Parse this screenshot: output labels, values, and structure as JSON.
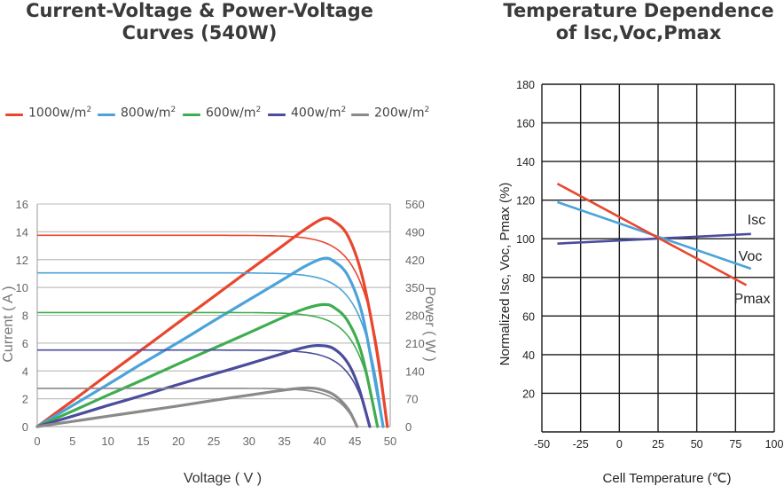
{
  "left_title": [
    "Current-Voltage & Power-Voltage",
    "Curves (540W)"
  ],
  "right_title": [
    "Temperature Dependence",
    "of Isc,Voc,Pmax"
  ],
  "legend": [
    {
      "label": "1000w/m",
      "sup": "2",
      "color": "#e8472e"
    },
    {
      "label": "800w/m",
      "sup": "2",
      "color": "#4ba3d9"
    },
    {
      "label": "600w/m",
      "sup": "2",
      "color": "#3fad4f"
    },
    {
      "label": "400w/m",
      "sup": "2",
      "color": "#4a4c9c"
    },
    {
      "label": "200w/m",
      "sup": "2",
      "color": "#8a8a8a"
    }
  ],
  "chart_data": [
    {
      "type": "line",
      "title": "Current-Voltage & Power-Voltage Curves (540W)",
      "xlabel": "Voltage ( V )",
      "ylabel": "Current ( A )",
      "y2label": "Power ( W )",
      "xlim": [
        0,
        50
      ],
      "ylim": [
        0,
        16
      ],
      "y2lim": [
        0,
        560
      ],
      "xticks": [
        0,
        5,
        10,
        15,
        20,
        25,
        30,
        35,
        40,
        45,
        50
      ],
      "yticks": [
        0,
        2,
        4,
        6,
        8,
        10,
        12,
        14,
        16
      ],
      "y2ticks": [
        0,
        70,
        140,
        210,
        280,
        350,
        420,
        490,
        560
      ],
      "grid": "horizontal",
      "legend_position": "top",
      "series": [
        {
          "name": "1000w/m2",
          "color": "#e8472e",
          "isc": 13.75,
          "voc": 49.6,
          "power": [
            [
              0,
              0
            ],
            [
              5,
              65
            ],
            [
              10,
              131
            ],
            [
              15,
              196
            ],
            [
              20,
              262
            ],
            [
              25,
              327
            ],
            [
              30,
              393
            ],
            [
              35,
              458
            ],
            [
              38,
              497
            ],
            [
              40.5,
              523
            ],
            [
              42,
              517
            ],
            [
              44,
              480
            ],
            [
              46,
              380
            ],
            [
              48,
              200
            ],
            [
              49.6,
              0
            ]
          ]
        },
        {
          "name": "800w/m2",
          "color": "#4ba3d9",
          "isc": 11.05,
          "voc": 49.0,
          "power": [
            [
              0,
              0
            ],
            [
              5,
              53
            ],
            [
              10,
              106
            ],
            [
              15,
              160
            ],
            [
              20,
              212
            ],
            [
              25,
              266
            ],
            [
              30,
              319
            ],
            [
              35,
              372
            ],
            [
              38,
              404
            ],
            [
              40.5,
              423
            ],
            [
              42,
              416
            ],
            [
              44,
              380
            ],
            [
              46,
              285
            ],
            [
              48,
              100
            ],
            [
              49.0,
              0
            ]
          ]
        },
        {
          "name": "600w/m2",
          "color": "#3fad4f",
          "isc": 8.2,
          "voc": 48.2,
          "power": [
            [
              0,
              0
            ],
            [
              5,
              39
            ],
            [
              10,
              79
            ],
            [
              15,
              118
            ],
            [
              20,
              158
            ],
            [
              25,
              197
            ],
            [
              30,
              236
            ],
            [
              35,
              276
            ],
            [
              38,
              297
            ],
            [
              40.5,
              307
            ],
            [
              42,
              300
            ],
            [
              44,
              265
            ],
            [
              46,
              180
            ],
            [
              48.2,
              0
            ]
          ]
        },
        {
          "name": "400w/m2",
          "color": "#4a4c9c",
          "isc": 5.5,
          "voc": 47.1,
          "power": [
            [
              0,
              0
            ],
            [
              5,
              26
            ],
            [
              10,
              53
            ],
            [
              15,
              79
            ],
            [
              20,
              106
            ],
            [
              25,
              132
            ],
            [
              30,
              158
            ],
            [
              35,
              185
            ],
            [
              38,
              200
            ],
            [
              40,
              204
            ],
            [
              42,
              196
            ],
            [
              44,
              160
            ],
            [
              45.5,
              100
            ],
            [
              47.1,
              0
            ]
          ]
        },
        {
          "name": "200w/m2",
          "color": "#8a8a8a",
          "isc": 2.75,
          "voc": 45.3,
          "power": [
            [
              0,
              0
            ],
            [
              5,
              13
            ],
            [
              10,
              26
            ],
            [
              15,
              39
            ],
            [
              20,
              52
            ],
            [
              25,
              66
            ],
            [
              30,
              79
            ],
            [
              35,
              92
            ],
            [
              37,
              96
            ],
            [
              38.5,
              97
            ],
            [
              40,
              94
            ],
            [
              42,
              80
            ],
            [
              44,
              45
            ],
            [
              45.3,
              0
            ]
          ]
        }
      ]
    },
    {
      "type": "line",
      "title": "Temperature Dependence of Isc,Voc,Pmax",
      "xlabel": "Cell Temperature (℃)",
      "ylabel": "Normalized Isc, Voc, Pmax (%)",
      "xlim": [
        -50,
        100
      ],
      "ylim": [
        0,
        180
      ],
      "xticks": [
        -50,
        -25,
        0,
        25,
        50,
        75,
        100
      ],
      "yticks": [
        20,
        40,
        60,
        80,
        100,
        120,
        140,
        160,
        180
      ],
      "grid": true,
      "series": [
        {
          "name": "Isc",
          "color": "#4a4c9c",
          "x": [
            -40,
            85
          ],
          "y": [
            97.5,
            102.5
          ]
        },
        {
          "name": "Voc",
          "color": "#4ba3d9",
          "x": [
            -40,
            85
          ],
          "y": [
            119,
            84.5
          ]
        },
        {
          "name": "Pmax",
          "color": "#e8472e",
          "x": [
            -40,
            82
          ],
          "y": [
            128.5,
            76
          ]
        }
      ]
    }
  ]
}
